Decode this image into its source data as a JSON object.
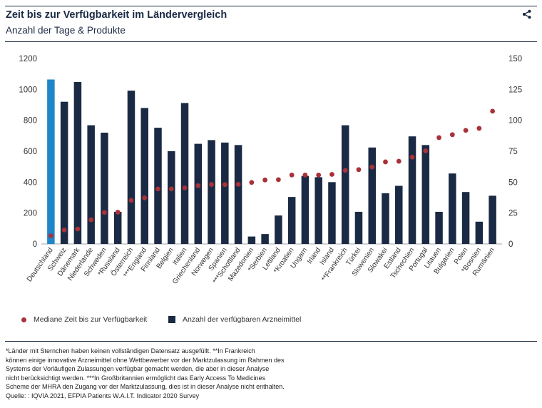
{
  "header": {
    "title": "Zeit bis zur Verfügbarkeit im Ländervergleich",
    "subtitle": "Anzahl der Tage & Produkte",
    "share_icon": "share-icon"
  },
  "colors": {
    "bar": "#1a2a44",
    "bar_highlight": "#1f86c8",
    "dot": "#a8323a",
    "text": "#1a2a44"
  },
  "chart_data": {
    "type": "bar",
    "title": "Zeit bis zur Verfügbarkeit im Ländervergleich",
    "subtitle": "Anzahl der Tage & Produkte",
    "categories": [
      "Deutschland",
      "Schweiz",
      "Dänemark",
      "Niederlande",
      "Schweden",
      "*Russland",
      "Österreich",
      "***England",
      "Finnland",
      "Belgien",
      "Italien",
      "Griechenland",
      "Norwegen",
      "Spanien",
      "***Schottland",
      "Mazedonien",
      "*Serbien",
      "Lettland",
      "*Kroatien",
      "Ungarn",
      "Irland",
      "Island",
      "**Frankreich",
      "Türkei",
      "Slowenien",
      "Slowakei",
      "Estland",
      "Tschechien",
      "Portugal",
      "Litauen",
      "Bulgarien",
      "Polen",
      "*Bosnien",
      "Rumänien"
    ],
    "highlight_category": "Deutschland",
    "series": [
      {
        "name": "Mediane Zeit bis zur Verfügbarkeit",
        "type": "scatter",
        "axis": "left",
        "values": [
          53,
          90,
          97,
          156,
          204,
          205,
          282,
          298,
          356,
          356,
          363,
          377,
          385,
          384,
          386,
          398,
          414,
          416,
          446,
          446,
          446,
          450,
          476,
          481,
          498,
          531,
          535,
          562,
          602,
          688,
          707,
          735,
          748,
          859
        ]
      },
      {
        "name": "Anzahl der verfügbaren Arzneimittel",
        "type": "bar",
        "axis": "right",
        "values": [
          133,
          115,
          131,
          96,
          90,
          26,
          124,
          110,
          94,
          75,
          114,
          81,
          84,
          82,
          80,
          6,
          8,
          23,
          38,
          55,
          54,
          50,
          96,
          26,
          78,
          41,
          47,
          87,
          80,
          26,
          57,
          42,
          18,
          39
        ]
      }
    ],
    "y_left": {
      "min": 0,
      "max": 1200,
      "ticks": [
        "0",
        "200",
        "400",
        "600",
        "800",
        "1000",
        "1200"
      ]
    },
    "y_right": {
      "min": 0,
      "max": 150,
      "ticks": [
        "0",
        "25",
        "50",
        "75",
        "100",
        "125",
        "150"
      ]
    },
    "grid": false,
    "legend_position": "bottom"
  },
  "legend": {
    "dot_label": "Mediane Zeit bis zur Verfügbarkeit",
    "bar_label": "Anzahl der verfügbaren Arzneimittel"
  },
  "footnote": {
    "lines": [
      "*Länder mit Sternchen haben keinen vollständigen Datensatz ausgefüllt. **In Frankreich",
      "können einige innovative Arzneimittel ohne Wettbewerber vor der Marktzulassung im Rahmen des",
      "Systems der Vorläufigen Zulassungen verfügbar gemacht werden, die aber in dieser Analyse",
      "nicht berücksichtigt werden. ***In Großbritannien ermöglicht das Early Access To Medicines",
      "Scheme der MHRA den Zugang vor der Marktzulassung, dies ist in dieser Analyse nicht enthalten.",
      "Quelle: : IQVIA 2021, EFPIA Patients W.A.I.T. Indicator 2020 Survey"
    ]
  }
}
